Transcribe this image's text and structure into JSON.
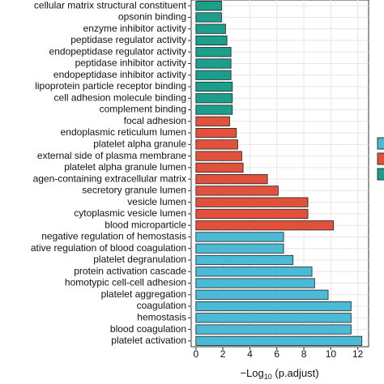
{
  "chart_data": {
    "type": "barh",
    "categories": [
      "cellular matrix structural constituent",
      "opsonin binding",
      "enzyme inhibitor activity",
      "peptidase regulator activity",
      "endopeptidase regulator activity",
      "peptidase inhibitor activity",
      "endopeptidase inhibitor activity",
      "lipoprotein particle receptor binding",
      "cell adhesion molecule binding",
      "complement binding",
      "focal adhesion",
      "endoplasmic reticulum lumen",
      "platelet alpha granule",
      "external side of plasma membrane",
      "platelet alpha granule lumen",
      "agen-containing extracellular matrix",
      "secretory granule lumen",
      "vesicle lumen",
      "cytoplasmic vesicle lumen",
      "blood microparticle",
      "negative regulation of hemostasis",
      "ative regulation of blood coagulation",
      "platelet degranulation",
      "protein activation cascade",
      "homotypic cell-cell adhesion",
      "platelet aggregation",
      "coagulation",
      "hemostasis",
      "blood coagulation",
      "platelet activation"
    ],
    "values": [
      1.9,
      1.9,
      2.2,
      2.3,
      2.6,
      2.6,
      2.6,
      2.7,
      2.7,
      2.7,
      2.5,
      3.0,
      3.1,
      3.4,
      3.5,
      5.3,
      6.1,
      8.3,
      8.3,
      10.2,
      6.5,
      6.5,
      7.2,
      8.6,
      8.8,
      9.8,
      11.5,
      11.5,
      11.5,
      12.3
    ],
    "colors": [
      "#1b9e8a",
      "#1b9e8a",
      "#1b9e8a",
      "#1b9e8a",
      "#1b9e8a",
      "#1b9e8a",
      "#1b9e8a",
      "#1b9e8a",
      "#1b9e8a",
      "#1b9e8a",
      "#e2513b",
      "#e2513b",
      "#e2513b",
      "#e2513b",
      "#e2513b",
      "#e2513b",
      "#e2513b",
      "#e2513b",
      "#e2513b",
      "#e2513b",
      "#4bbad6",
      "#4bbad6",
      "#4bbad6",
      "#4bbad6",
      "#4bbad6",
      "#4bbad6",
      "#4bbad6",
      "#4bbad6",
      "#4bbad6",
      "#4bbad6"
    ],
    "xlim": [
      -0.35,
      12.8
    ],
    "xticks": [
      0,
      2,
      4,
      6,
      8,
      10,
      12
    ],
    "grid": true,
    "xlabel": {
      "main": "−Log",
      "sub": "10",
      "rest": " (p.adjust)"
    }
  }
}
